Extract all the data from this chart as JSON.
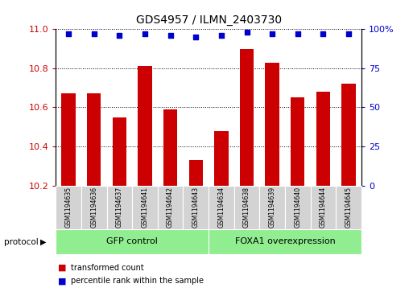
{
  "title": "GDS4957 / ILMN_2403730",
  "samples": [
    "GSM1194635",
    "GSM1194636",
    "GSM1194637",
    "GSM1194641",
    "GSM1194642",
    "GSM1194643",
    "GSM1194634",
    "GSM1194638",
    "GSM1194639",
    "GSM1194640",
    "GSM1194644",
    "GSM1194645"
  ],
  "red_values": [
    10.67,
    10.67,
    10.55,
    10.81,
    10.59,
    10.33,
    10.48,
    10.9,
    10.83,
    10.65,
    10.68,
    10.72
  ],
  "blue_values": [
    97,
    97,
    96,
    97,
    96,
    95,
    96,
    98,
    97,
    97,
    97,
    97
  ],
  "ylim_left": [
    10.2,
    11.0
  ],
  "ylim_right": [
    0,
    100
  ],
  "yticks_left": [
    10.2,
    10.4,
    10.6,
    10.8,
    11.0
  ],
  "yticks_right": [
    0,
    25,
    50,
    75,
    100
  ],
  "bar_color": "#cc0000",
  "dot_color": "#0000cc",
  "background_color": "#ffffff",
  "group1_label": "GFP control",
  "group2_label": "FOXA1 overexpression",
  "group1_indices": [
    0,
    1,
    2,
    3,
    4,
    5
  ],
  "group2_indices": [
    6,
    7,
    8,
    9,
    10,
    11
  ],
  "protocol_label": "protocol",
  "legend1": "transformed count",
  "legend2": "percentile rank within the sample",
  "bar_color_legend": "#cc0000",
  "dot_color_legend": "#0000cc",
  "bar_bottom": 10.2,
  "panel_bg": "#d3d3d3",
  "group_bg": "#90ee90",
  "right_tick_label_100": "100%"
}
